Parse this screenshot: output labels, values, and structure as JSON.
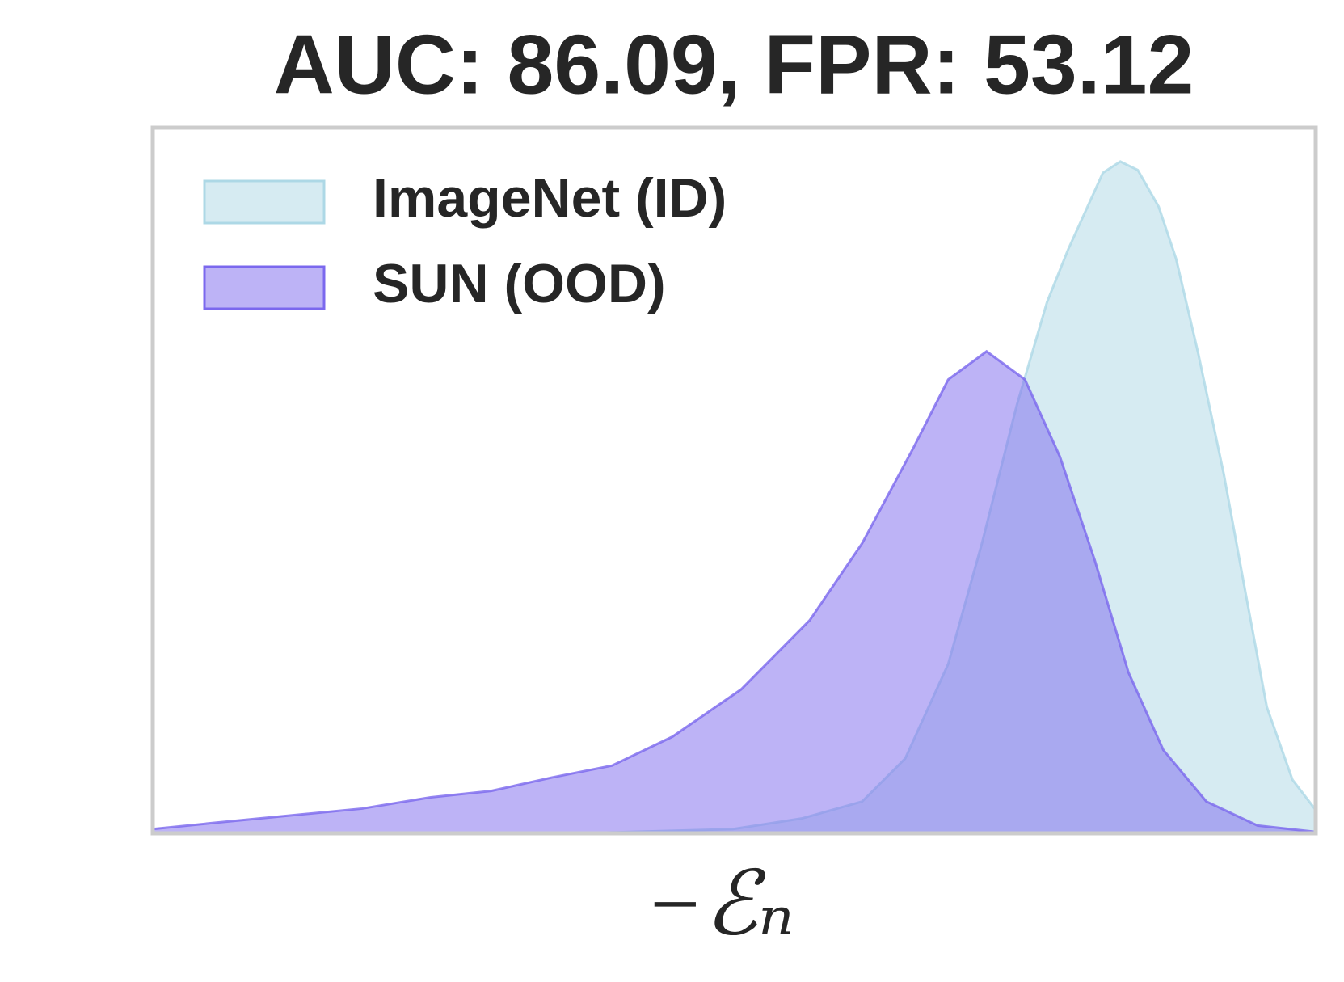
{
  "chart_data": {
    "type": "area",
    "title": "AUC: 86.09, FPR: 53.12",
    "xlabel": "−ℰₙ",
    "xlim": [
      0,
      100
    ],
    "ylim": [
      0,
      100
    ],
    "legend": "upper left",
    "series": [
      {
        "name": "ImageNet (ID)",
        "color": "#add8e6",
        "x": [
          0,
          38.7,
          49.9,
          55.8,
          61,
          64.7,
          68.4,
          71.3,
          74.3,
          76.9,
          78.7,
          81.7,
          83.2,
          84.7,
          86.5,
          88,
          89.9,
          92.1,
          94,
          95.8,
          98,
          100
        ],
        "values": [
          0,
          0.1,
          0.6,
          2.1,
          4.5,
          10.6,
          24,
          41.1,
          60.7,
          75.3,
          82.7,
          93.6,
          95.2,
          94,
          88.8,
          81.4,
          68,
          50.9,
          33.8,
          17.9,
          7.6,
          3.3
        ]
      },
      {
        "name": "SUN (OOD)",
        "color": "#7b68ee",
        "x": [
          0,
          5.4,
          18,
          23.9,
          29.1,
          34.3,
          39.5,
          44.7,
          50.6,
          56.5,
          61,
          65.4,
          68.4,
          71.7,
          75,
          78,
          81,
          83.9,
          86.9,
          90.6,
          95,
          100
        ],
        "values": [
          0.6,
          1.5,
          3.5,
          5.1,
          6,
          7.9,
          9.6,
          13.7,
          20.4,
          30.2,
          41.1,
          54.6,
          64.3,
          68.3,
          64.3,
          53.4,
          38.7,
          22.8,
          11.8,
          4.5,
          1.1,
          0.2
        ]
      }
    ]
  }
}
